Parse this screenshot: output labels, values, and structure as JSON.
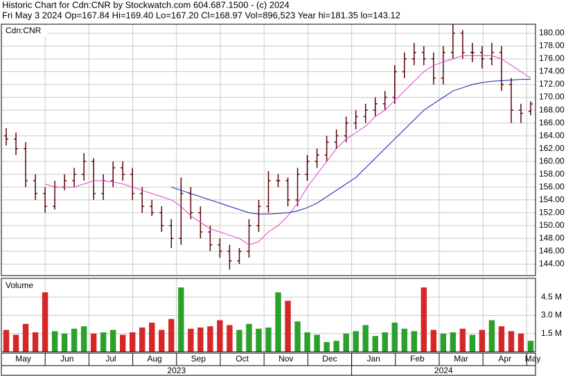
{
  "chart_data": {
    "type": "ohlc",
    "title": "Historic Chart for Cdn:CNR by Stockwatch.com 604.687.1500 - (c) 2024",
    "subtitle": "Fri May  3 2024  Op=167.84  Hi=169.40  Lo=167.20  Cl=168.97  Vol=896,523  Year hi=181.35  lo=143.12",
    "symbol_label": "Cdn:CNR",
    "volume_label": "Volume",
    "months": [
      "May",
      "Jun",
      "Jul",
      "Aug",
      "Sep",
      "Oct",
      "Nov",
      "Dec",
      "Jan",
      "Feb",
      "Mar",
      "Apr",
      "May"
    ],
    "years": [
      "2023",
      "2024"
    ],
    "open": [
      164,
      163.5,
      162,
      157,
      155,
      153,
      156,
      157,
      158,
      160,
      155,
      157,
      159,
      158,
      155,
      153,
      152,
      150,
      148,
      155,
      152,
      149,
      147,
      146,
      144.5,
      146,
      150,
      153,
      157,
      157,
      154,
      158,
      160,
      161,
      163,
      164,
      166,
      167,
      168,
      169,
      170,
      174,
      176,
      177,
      176,
      173,
      177,
      180,
      177,
      177,
      176,
      177,
      172,
      168,
      167.84
    ],
    "high": [
      165.2,
      164.5,
      163,
      158,
      156,
      157,
      158,
      159,
      161.3,
      160.5,
      158,
      160,
      160,
      159,
      156,
      154,
      153,
      151,
      157.5,
      156,
      153,
      150,
      148,
      147,
      146.5,
      151,
      154,
      158.5,
      158,
      157.5,
      159,
      161,
      162,
      164,
      165,
      167,
      168,
      169,
      170,
      171,
      175,
      177,
      178.5,
      178,
      177,
      178,
      181.35,
      180.5,
      178.5,
      178,
      178.5,
      178,
      173,
      169,
      169.4
    ],
    "low": [
      162.5,
      161,
      156,
      154,
      152,
      152.5,
      155.5,
      156,
      157,
      154,
      154,
      156,
      157,
      154,
      152,
      151.5,
      149,
      146.5,
      147,
      151,
      148,
      146,
      145,
      143.12,
      144,
      145,
      149,
      152,
      156,
      153,
      153,
      157,
      159,
      160,
      162,
      163,
      165,
      166,
      167,
      168,
      169,
      173,
      175,
      175,
      172,
      172,
      176,
      176,
      175.5,
      174.5,
      175,
      171,
      166,
      166,
      167.2
    ],
    "close": [
      163.5,
      162,
      157,
      155,
      153,
      156,
      157,
      158,
      160,
      155,
      157,
      159,
      158,
      155,
      153,
      152,
      150,
      148,
      155,
      152,
      149,
      147,
      146,
      144.5,
      146,
      150,
      153,
      157,
      157,
      154,
      158,
      160,
      161,
      163,
      164,
      166,
      167,
      168,
      169,
      170,
      174,
      176,
      177,
      176,
      173,
      177,
      180,
      177,
      177,
      176,
      177,
      172,
      168,
      167.5,
      168.97
    ],
    "volume": [
      1.8,
      1.4,
      2.3,
      1.6,
      4.9,
      1.7,
      1.5,
      1.9,
      2.1,
      1.5,
      1.6,
      1.8,
      1.4,
      1.6,
      2.0,
      2.4,
      1.8,
      2.7,
      5.3,
      1.9,
      2.0,
      2.1,
      2.6,
      2.2,
      1.8,
      2.3,
      1.9,
      2.0,
      4.9,
      4.2,
      2.5,
      1.6,
      1.4,
      0.8,
      0.9,
      1.5,
      1.7,
      2.2,
      1.3,
      1.6,
      2.4,
      1.9,
      1.7,
      5.3,
      1.8,
      1.5,
      1.6,
      1.9,
      1.4,
      1.8,
      2.6,
      2.1,
      1.7,
      1.5,
      0.9
    ],
    "bar_color": "#5a0000",
    "up_color": "#2ca02c",
    "down_color": "#d62728",
    "series": [
      {
        "color": "#e040d0",
        "values": [
          null,
          null,
          null,
          null,
          156.5,
          156,
          156,
          156,
          156.5,
          157,
          157,
          156.8,
          156.5,
          156,
          155.5,
          155,
          154.5,
          154,
          153,
          151.5,
          150.5,
          149.5,
          149,
          148.5,
          148,
          147,
          147.5,
          149,
          150,
          151.5,
          153.5,
          156,
          158,
          160,
          162,
          163.5,
          164.5,
          165.5,
          167,
          168,
          169.5,
          171,
          172.5,
          174,
          175,
          175.5,
          176,
          176.5,
          176.5,
          176.5,
          176.5,
          176,
          175,
          174,
          173
        ]
      },
      {
        "color": "#1a1ab0",
        "values": [
          null,
          null,
          null,
          null,
          null,
          null,
          null,
          null,
          null,
          null,
          null,
          null,
          null,
          null,
          null,
          null,
          null,
          156,
          155.5,
          155,
          154.5,
          154,
          153.5,
          153,
          152.5,
          152,
          151.8,
          151.8,
          151.9,
          152,
          152.3,
          152.8,
          153.5,
          154.5,
          155.5,
          156.5,
          157.5,
          159,
          160.5,
          162,
          163.5,
          165,
          166.5,
          168,
          169,
          170,
          171,
          171.5,
          172,
          172.3,
          172.5,
          172.6,
          172.7,
          172.8,
          172.8
        ]
      }
    ],
    "ylim": [
      142.2,
      181.4
    ],
    "yticks": [
      {
        "value": 144,
        "label": "144.00"
      },
      {
        "value": 146,
        "label": "146.00"
      },
      {
        "value": 148,
        "label": "148.00"
      },
      {
        "value": 150,
        "label": "150.00"
      },
      {
        "value": 152,
        "label": "152.00"
      },
      {
        "value": 154,
        "label": "154.00"
      },
      {
        "value": 156,
        "label": "156.00"
      },
      {
        "value": 158,
        "label": "158.00"
      },
      {
        "value": 160,
        "label": "160.00"
      },
      {
        "value": 162,
        "label": "162.00"
      },
      {
        "value": 164,
        "label": "164.00"
      },
      {
        "value": 166,
        "label": "166.00"
      },
      {
        "value": 168,
        "label": "168.00"
      },
      {
        "value": 170,
        "label": "170.00"
      },
      {
        "value": 172,
        "label": "172.00"
      },
      {
        "value": 174,
        "label": "174.00"
      },
      {
        "value": 176,
        "label": "176.00"
      },
      {
        "value": 178,
        "label": "178.00"
      },
      {
        "value": 180,
        "label": "180.00"
      }
    ],
    "y2lim": [
      0,
      6.05
    ],
    "y2ticks": [
      {
        "value": 1.5,
        "label": "1.5 M"
      },
      {
        "value": 3.0,
        "label": "3.0 M"
      },
      {
        "value": 4.5,
        "label": "4.5 M"
      }
    ],
    "grid": true
  }
}
